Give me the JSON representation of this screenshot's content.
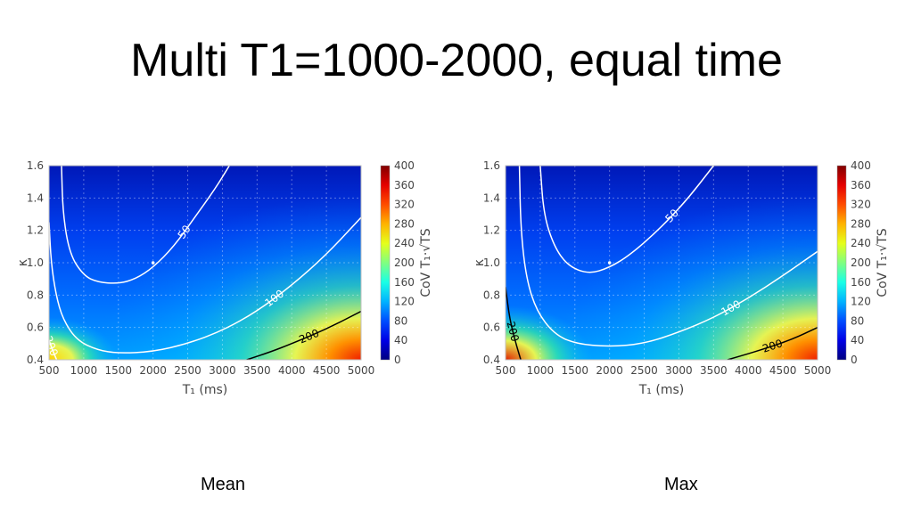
{
  "title": "Multi T1=1000-2000, equal time",
  "captions": {
    "left": "Mean",
    "right": "Max"
  },
  "chart_data": [
    {
      "type": "heatmap",
      "panel": "left",
      "xlabel": "T₁ (ms)",
      "ylabel": "κ",
      "colorbar_label": "CoV T₁·√TS",
      "xlim": [
        500,
        5000
      ],
      "ylim": [
        0.4,
        1.6
      ],
      "clim": [
        0,
        400
      ],
      "x_ticks": [
        500,
        1000,
        1500,
        2000,
        2500,
        3000,
        3500,
        4000,
        4500,
        5000
      ],
      "y_ticks": [
        "0.4",
        "0.6",
        "0.8",
        "1.0",
        "1.2",
        "1.4",
        "1.6"
      ],
      "colorbar_ticks": [
        0,
        40,
        80,
        120,
        160,
        200,
        240,
        280,
        320,
        360,
        400
      ],
      "grid": true,
      "colormap": "jet",
      "marker": {
        "x": 2000,
        "y": 1.0
      },
      "contours": [
        {
          "level": 50,
          "label": "50",
          "color": "#ffffff",
          "points": [
            [
              680,
              1.6
            ],
            [
              700,
              1.3
            ],
            [
              800,
              1.05
            ],
            [
              1000,
              0.92
            ],
            [
              1200,
              0.88
            ],
            [
              1500,
              0.87
            ],
            [
              1750,
              0.9
            ],
            [
              2000,
              0.97
            ],
            [
              2300,
              1.1
            ],
            [
              2600,
              1.28
            ],
            [
              2900,
              1.46
            ],
            [
              3100,
              1.6
            ]
          ]
        },
        {
          "level": 100,
          "label": "100",
          "color": "#ffffff",
          "points": [
            [
              500,
              1.25
            ],
            [
              530,
              1.0
            ],
            [
              600,
              0.8
            ],
            [
              700,
              0.65
            ],
            [
              900,
              0.52
            ],
            [
              1200,
              0.46
            ],
            [
              1500,
              0.44
            ],
            [
              2000,
              0.45
            ],
            [
              2500,
              0.5
            ],
            [
              3000,
              0.58
            ],
            [
              3500,
              0.7
            ],
            [
              4000,
              0.86
            ],
            [
              4500,
              1.05
            ],
            [
              5000,
              1.28
            ]
          ]
        },
        {
          "level": 200,
          "label": "200",
          "color": "#ffffff",
          "points": [
            [
              500,
              0.52
            ],
            [
              560,
              0.45
            ],
            [
              610,
              0.4
            ]
          ]
        },
        {
          "level": 200,
          "label": "200",
          "color": "#000000",
          "points": [
            [
              3350,
              0.4
            ],
            [
              3700,
              0.45
            ],
            [
              4000,
              0.5
            ],
            [
              4500,
              0.59
            ],
            [
              5000,
              0.7
            ]
          ]
        }
      ]
    },
    {
      "type": "heatmap",
      "panel": "right",
      "xlabel": "T₁ (ms)",
      "ylabel": "κ",
      "colorbar_label": "CoV T₁·√TS",
      "xlim": [
        500,
        5000
      ],
      "ylim": [
        0.4,
        1.6
      ],
      "clim": [
        0,
        400
      ],
      "x_ticks": [
        500,
        1000,
        1500,
        2000,
        2500,
        3000,
        3500,
        4000,
        4500,
        5000
      ],
      "y_ticks": [
        "0.4",
        "0.6",
        "0.8",
        "1.0",
        "1.2",
        "1.4",
        "1.6"
      ],
      "colorbar_ticks": [
        0,
        40,
        80,
        120,
        160,
        200,
        240,
        280,
        320,
        360,
        400
      ],
      "grid": true,
      "colormap": "jet",
      "marker": {
        "x": 2000,
        "y": 1.0
      },
      "contours": [
        {
          "level": 50,
          "label": "50",
          "color": "#ffffff",
          "points": [
            [
              1000,
              1.6
            ],
            [
              1050,
              1.3
            ],
            [
              1200,
              1.1
            ],
            [
              1400,
              0.98
            ],
            [
              1700,
              0.93
            ],
            [
              2000,
              0.97
            ],
            [
              2300,
              1.05
            ],
            [
              2700,
              1.2
            ],
            [
              3100,
              1.38
            ],
            [
              3500,
              1.6
            ]
          ]
        },
        {
          "level": 100,
          "label": "100",
          "color": "#ffffff",
          "points": [
            [
              700,
              1.6
            ],
            [
              720,
              1.2
            ],
            [
              800,
              0.9
            ],
            [
              950,
              0.7
            ],
            [
              1200,
              0.56
            ],
            [
              1500,
              0.5
            ],
            [
              2000,
              0.48
            ],
            [
              2500,
              0.5
            ],
            [
              3000,
              0.57
            ],
            [
              3500,
              0.66
            ],
            [
              4000,
              0.78
            ],
            [
              4500,
              0.92
            ],
            [
              5000,
              1.07
            ]
          ]
        },
        {
          "level": 200,
          "label": "200",
          "color": "#000000",
          "points": [
            [
              500,
              0.85
            ],
            [
              560,
              0.65
            ],
            [
              650,
              0.5
            ],
            [
              720,
              0.4
            ]
          ]
        },
        {
          "level": 200,
          "label": "200",
          "color": "#000000",
          "points": [
            [
              3700,
              0.4
            ],
            [
              4100,
              0.45
            ],
            [
              4600,
              0.52
            ],
            [
              5000,
              0.6
            ]
          ]
        }
      ]
    }
  ]
}
